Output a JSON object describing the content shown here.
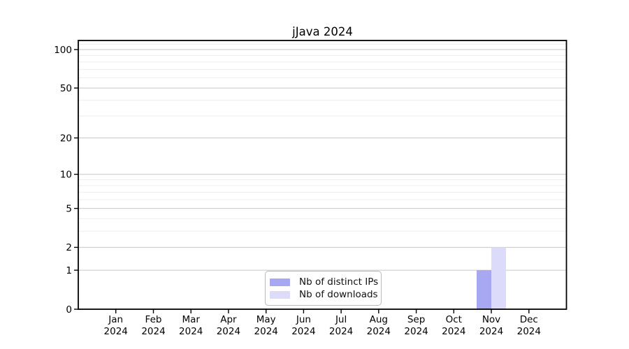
{
  "chart_data": {
    "type": "bar",
    "title": "jJava 2024",
    "categories": [
      "Jan 2024",
      "Feb 2024",
      "Mar 2024",
      "Apr 2024",
      "May 2024",
      "Jun 2024",
      "Jul 2024",
      "Aug 2024",
      "Sep 2024",
      "Oct 2024",
      "Nov 2024",
      "Dec 2024"
    ],
    "series": [
      {
        "name": "Nb of distinct IPs",
        "color": "#a7a7f2",
        "values": [
          0,
          0,
          0,
          0,
          0,
          0,
          0,
          0,
          0,
          0,
          1,
          0
        ]
      },
      {
        "name": "Nb of downloads",
        "color": "#dcdcfa",
        "values": [
          0,
          0,
          0,
          0,
          0,
          0,
          0,
          0,
          0,
          0,
          2,
          0
        ]
      }
    ],
    "xlabel": "",
    "ylabel": "",
    "yaxis": {
      "scale": "log10(1+x)",
      "ticks": [
        0,
        1,
        2,
        5,
        10,
        20,
        50,
        100
      ],
      "range": [
        0,
        120
      ]
    },
    "grid": {
      "lines": [
        1,
        2,
        3,
        4,
        5,
        6,
        7,
        8,
        9,
        10,
        20,
        30,
        40,
        50,
        60,
        70,
        80,
        90,
        100,
        110
      ],
      "major_color": "#c6c6c6",
      "minor_color": "#ededed"
    },
    "legend": {
      "position": "bottom-center",
      "framed": true
    }
  }
}
